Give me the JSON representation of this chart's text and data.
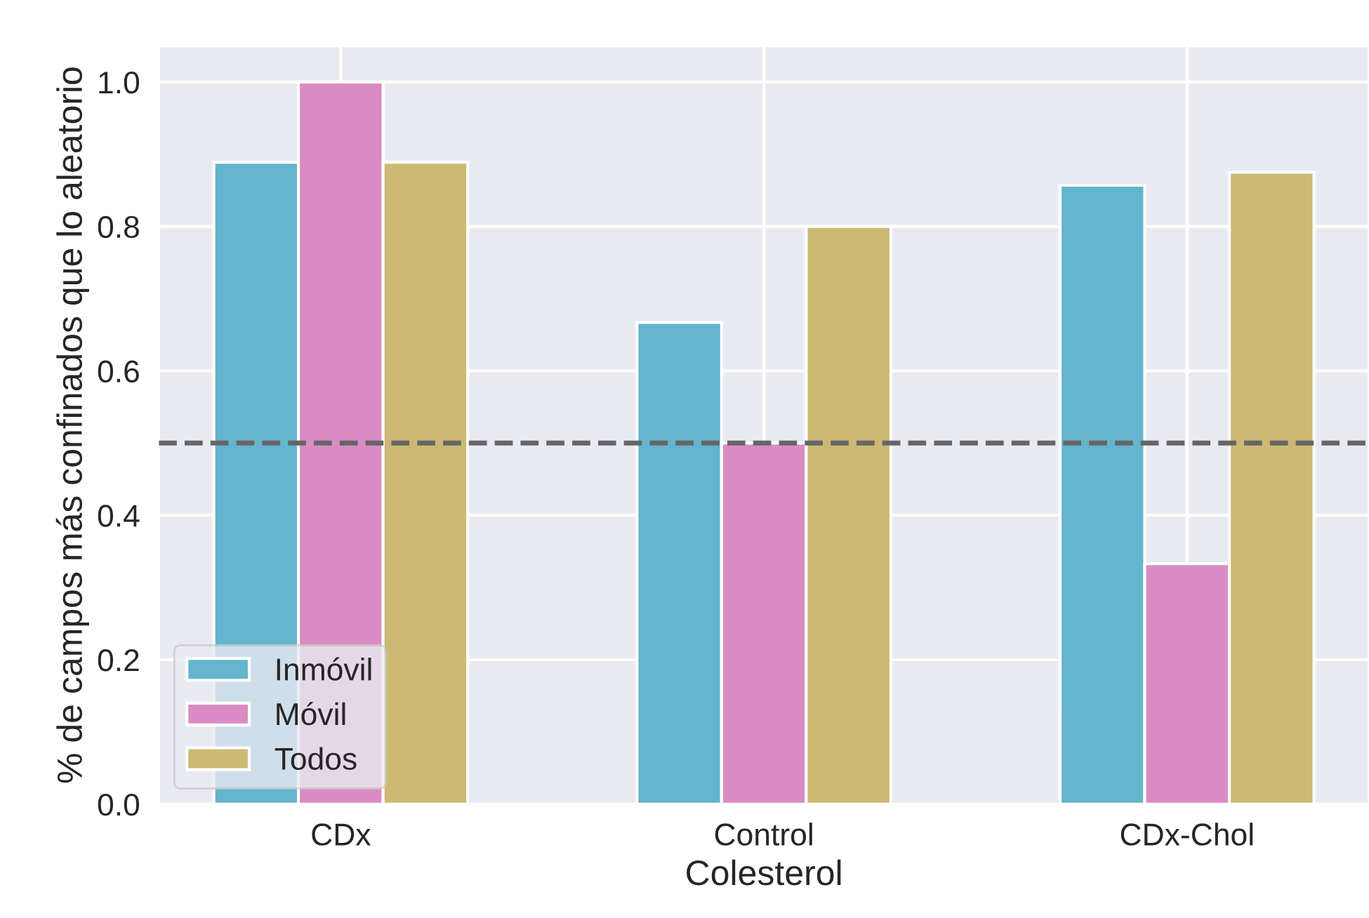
{
  "chart_data": {
    "type": "bar",
    "xlabel": "Colesterol",
    "ylabel": "% de campos más confinados que lo aleatorio",
    "categories": [
      "CDx",
      "Control",
      "CDx-Chol"
    ],
    "series": [
      {
        "name": "Inmóvil",
        "color": "#64b5cd",
        "values": [
          0.889,
          0.667,
          0.857
        ]
      },
      {
        "name": "Móvil",
        "color": "#da8bc3",
        "values": [
          1.0,
          0.5,
          0.333
        ]
      },
      {
        "name": "Todos",
        "color": "#ccb974",
        "values": [
          0.889,
          0.8,
          0.875
        ]
      }
    ],
    "ylim": [
      0,
      1.05
    ],
    "yticks": [
      {
        "value": 0,
        "label": "0.0"
      },
      {
        "value": 0.2,
        "label": "0.2"
      },
      {
        "value": 0.4,
        "label": "0.4"
      },
      {
        "value": 0.6,
        "label": "0.6"
      },
      {
        "value": 0.8,
        "label": "0.8"
      },
      {
        "value": 1.0,
        "label": "1.0"
      }
    ],
    "ref_lines": [
      {
        "axis": "y",
        "value": 0.5,
        "color": "#666666",
        "line_style": "dashed"
      }
    ],
    "grid": true,
    "legend": "bottom left"
  }
}
